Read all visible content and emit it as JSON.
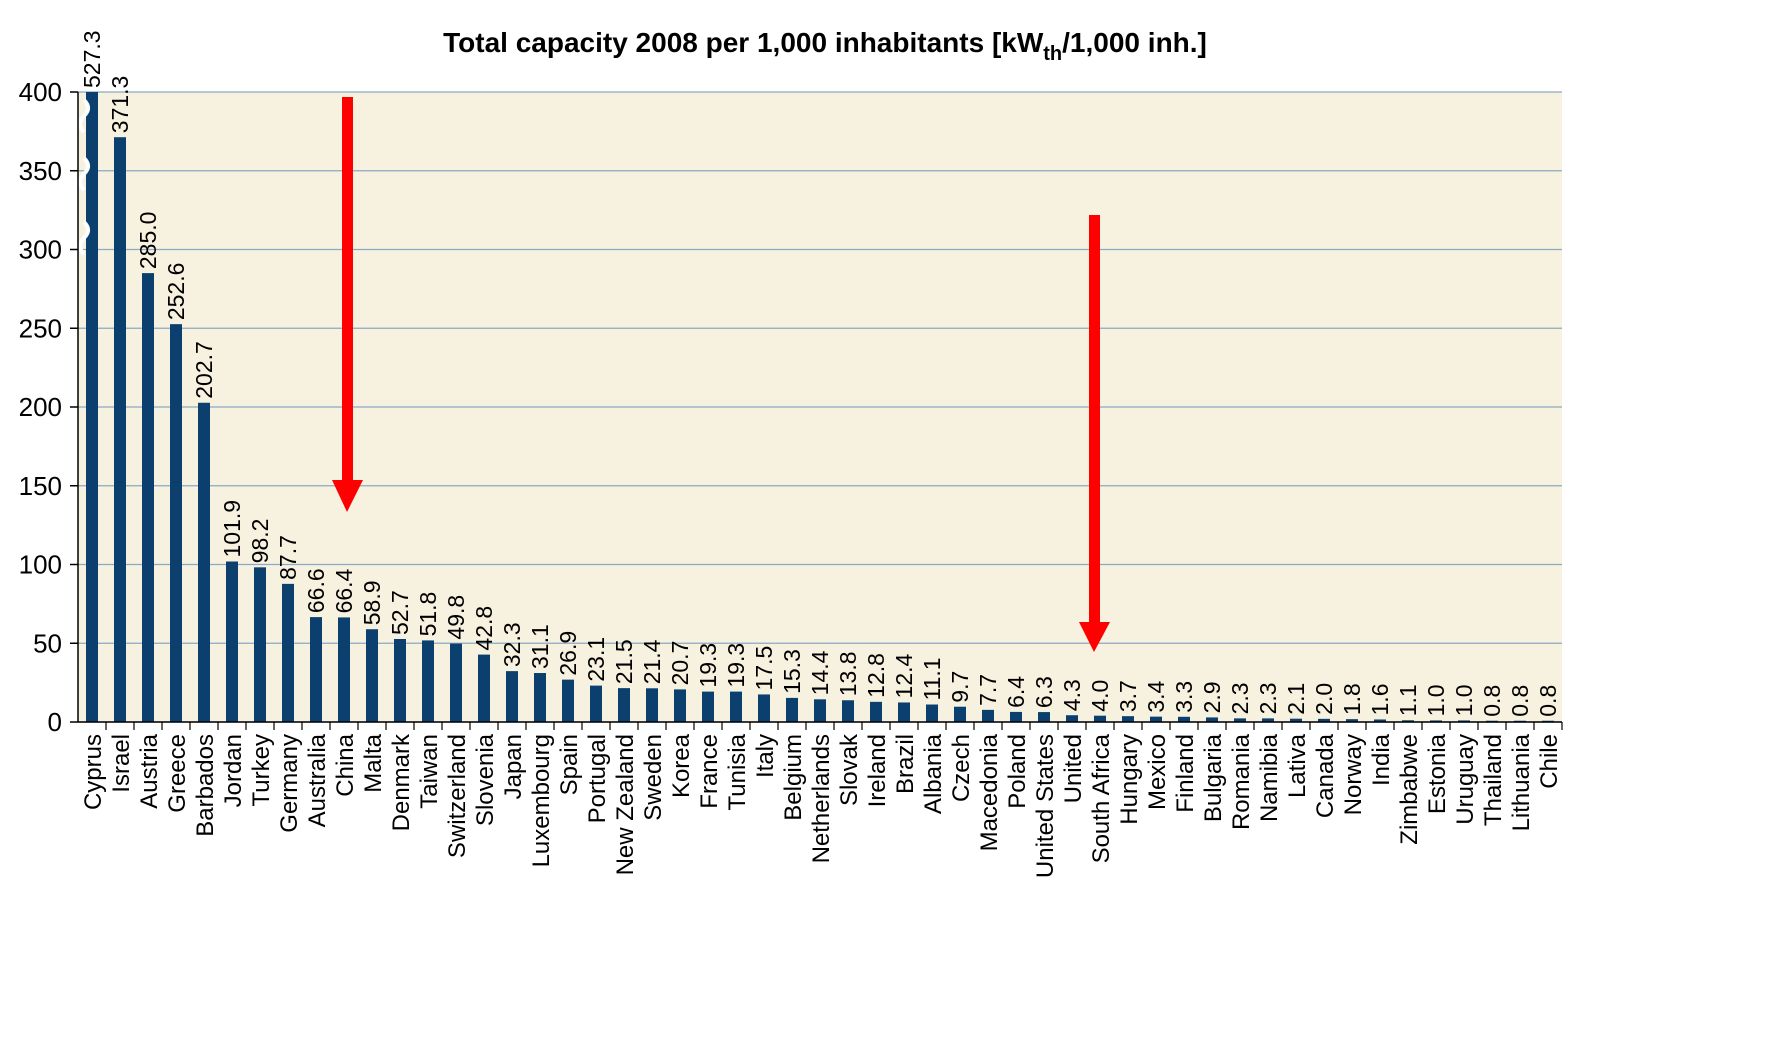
{
  "chart_data": {
    "type": "bar",
    "title": [
      "Total capacity 2008 per 1,000 inhabitants [kW",
      "th",
      "/1,000 inh.]"
    ],
    "categories": [
      "Cyprus",
      "Israel",
      "Austria",
      "Greece",
      "Barbados",
      "Jordan",
      "Turkey",
      "Germany",
      "Australia",
      "China",
      "Malta",
      "Denmark",
      "Taiwan",
      "Switzerland",
      "Slovenia",
      "Japan",
      "Luxembourg",
      "Spain",
      "Portugal",
      "New Zealand",
      "Sweden",
      "Korea",
      "France",
      "Tunisia",
      "Italy",
      "Belgium",
      "Netherlands",
      "Slovak",
      "Ireland",
      "Brazil",
      "Albania",
      "Czech",
      "Macedonia",
      "Poland",
      "United States",
      "United",
      "South Africa",
      "Hungary",
      "Mexico",
      "Finland",
      "Bulgaria",
      "Romania",
      "Namibia",
      "Lativa",
      "Canada",
      "Norway",
      "India",
      "Zimbabwe",
      "Estonia",
      "Uruguay",
      "Thailand",
      "Lithuania",
      "Chile"
    ],
    "values": [
      527.3,
      371.3,
      285.0,
      252.6,
      202.7,
      101.9,
      98.2,
      87.7,
      66.6,
      66.4,
      58.9,
      52.7,
      51.8,
      49.8,
      42.8,
      32.3,
      31.1,
      26.9,
      23.1,
      21.5,
      21.4,
      20.7,
      19.3,
      19.3,
      17.5,
      15.3,
      14.4,
      13.8,
      12.8,
      12.4,
      11.1,
      9.7,
      7.7,
      6.4,
      6.3,
      4.3,
      4.0,
      3.7,
      3.4,
      3.3,
      2.9,
      2.3,
      2.3,
      2.1,
      2.0,
      1.8,
      1.6,
      1.1,
      1.0,
      1.0,
      0.8,
      0.8,
      0.8
    ],
    "value_labels": [
      "527.3",
      "371.3",
      "285.0",
      "252.6",
      "202.7",
      "101.9",
      "98.2",
      "87.7",
      "66.6",
      "66.4",
      "58.9",
      "52.7",
      "51.8",
      "49.8",
      "42.8",
      "32.3",
      "31.1",
      "26.9",
      "23.1",
      "21.5",
      "21.4",
      "20.7",
      "19.3",
      "19.3",
      "17.5",
      "15.3",
      "14.4",
      "13.8",
      "12.8",
      "12.4",
      "11.1",
      "9.7",
      "7.7",
      "6.4",
      "6.3",
      "4.3",
      "4.0",
      "3.7",
      "3.4",
      "3.3",
      "2.9",
      "2.3",
      "2.3",
      "2.1",
      "2.0",
      "1.8",
      "1.6",
      "1.1",
      "1.0",
      "1.0",
      "0.8",
      "0.8",
      "0.8"
    ],
    "color": "#0b3f6e",
    "ylim": [
      0,
      400
    ],
    "yticks": [
      0,
      50,
      100,
      150,
      200,
      250,
      300,
      350,
      400
    ],
    "grid": true
  }
}
